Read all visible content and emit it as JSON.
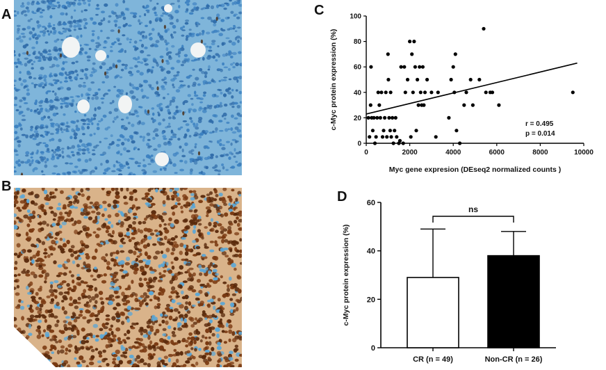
{
  "panels": {
    "a": {
      "letter": "A"
    },
    "b": {
      "letter": "B"
    },
    "c": {
      "letter": "C"
    },
    "d": {
      "letter": "D"
    }
  },
  "colors": {
    "panel_a_background": "#7fb5da",
    "panel_a_nuclei": "#3a7fc0",
    "panel_b_background": "#d9b38a",
    "panel_b_nuclei": "#7a3a12",
    "panel_b_blue_nuclei": "#5aa6d6",
    "bar_non_cr": "#000000",
    "bar_cr": "#ffffff"
  },
  "chart_data": [
    {
      "id": "C",
      "type": "scatter",
      "title": "",
      "xlabel": "Myc gene expresion (DEseq2 normalized counts )",
      "ylabel": "c-Myc protein expression (%)",
      "xlim": [
        0,
        10000
      ],
      "ylim": [
        0,
        100
      ],
      "xticks": [
        "0",
        "2000",
        "4000",
        "6000",
        "8000",
        "10000"
      ],
      "yticks": [
        "0",
        "20",
        "40",
        "60",
        "80",
        "100"
      ],
      "points": [
        [
          100,
          20
        ],
        [
          150,
          5
        ],
        [
          200,
          30
        ],
        [
          220,
          60
        ],
        [
          250,
          20
        ],
        [
          300,
          10
        ],
        [
          350,
          20
        ],
        [
          400,
          0
        ],
        [
          450,
          5
        ],
        [
          500,
          20
        ],
        [
          550,
          40
        ],
        [
          600,
          30
        ],
        [
          650,
          20
        ],
        [
          700,
          40
        ],
        [
          750,
          5
        ],
        [
          800,
          10
        ],
        [
          850,
          20
        ],
        [
          900,
          40
        ],
        [
          950,
          5
        ],
        [
          1000,
          70
        ],
        [
          1020,
          50
        ],
        [
          1050,
          20
        ],
        [
          1100,
          10
        ],
        [
          1120,
          40
        ],
        [
          1150,
          5
        ],
        [
          1200,
          20
        ],
        [
          1250,
          0
        ],
        [
          1300,
          10
        ],
        [
          1350,
          20
        ],
        [
          1400,
          5
        ],
        [
          1500,
          0
        ],
        [
          1550,
          2
        ],
        [
          1600,
          60
        ],
        [
          1700,
          0
        ],
        [
          1750,
          60
        ],
        [
          1800,
          40
        ],
        [
          1900,
          50
        ],
        [
          2000,
          80
        ],
        [
          2050,
          5
        ],
        [
          2100,
          70
        ],
        [
          2150,
          40
        ],
        [
          2200,
          80
        ],
        [
          2250,
          60
        ],
        [
          2300,
          10
        ],
        [
          2350,
          50
        ],
        [
          2400,
          30
        ],
        [
          2450,
          60
        ],
        [
          2500,
          40
        ],
        [
          2550,
          30
        ],
        [
          2600,
          60
        ],
        [
          2650,
          30
        ],
        [
          2700,
          40
        ],
        [
          2800,
          50
        ],
        [
          3000,
          40
        ],
        [
          3200,
          5
        ],
        [
          3300,
          40
        ],
        [
          3800,
          20
        ],
        [
          3900,
          50
        ],
        [
          4000,
          60
        ],
        [
          4050,
          40
        ],
        [
          4100,
          70
        ],
        [
          4150,
          10
        ],
        [
          4300,
          0
        ],
        [
          4500,
          30
        ],
        [
          4600,
          40
        ],
        [
          4800,
          50
        ],
        [
          4900,
          30
        ],
        [
          5200,
          50
        ],
        [
          5400,
          90
        ],
        [
          5500,
          40
        ],
        [
          5700,
          40
        ],
        [
          5800,
          40
        ],
        [
          6100,
          30
        ],
        [
          9500,
          40
        ]
      ],
      "regression_line": {
        "x": [
          0,
          9700
        ],
        "y": [
          23,
          63
        ]
      },
      "annotations": [
        "r = 0.495",
        "p = 0.014"
      ]
    },
    {
      "id": "D",
      "type": "bar",
      "title": "",
      "xlabel": "",
      "ylabel": "c-Myc protein expression (%)",
      "ylim": [
        0,
        60
      ],
      "yticks": [
        "0",
        "20",
        "40",
        "60"
      ],
      "categories": [
        "CR (n = 49)",
        "Non-CR (n = 26)"
      ],
      "values": [
        29,
        38
      ],
      "error_upper": [
        49,
        48
      ],
      "fill": [
        "#ffffff",
        "#000000"
      ],
      "significance": "ns"
    }
  ]
}
